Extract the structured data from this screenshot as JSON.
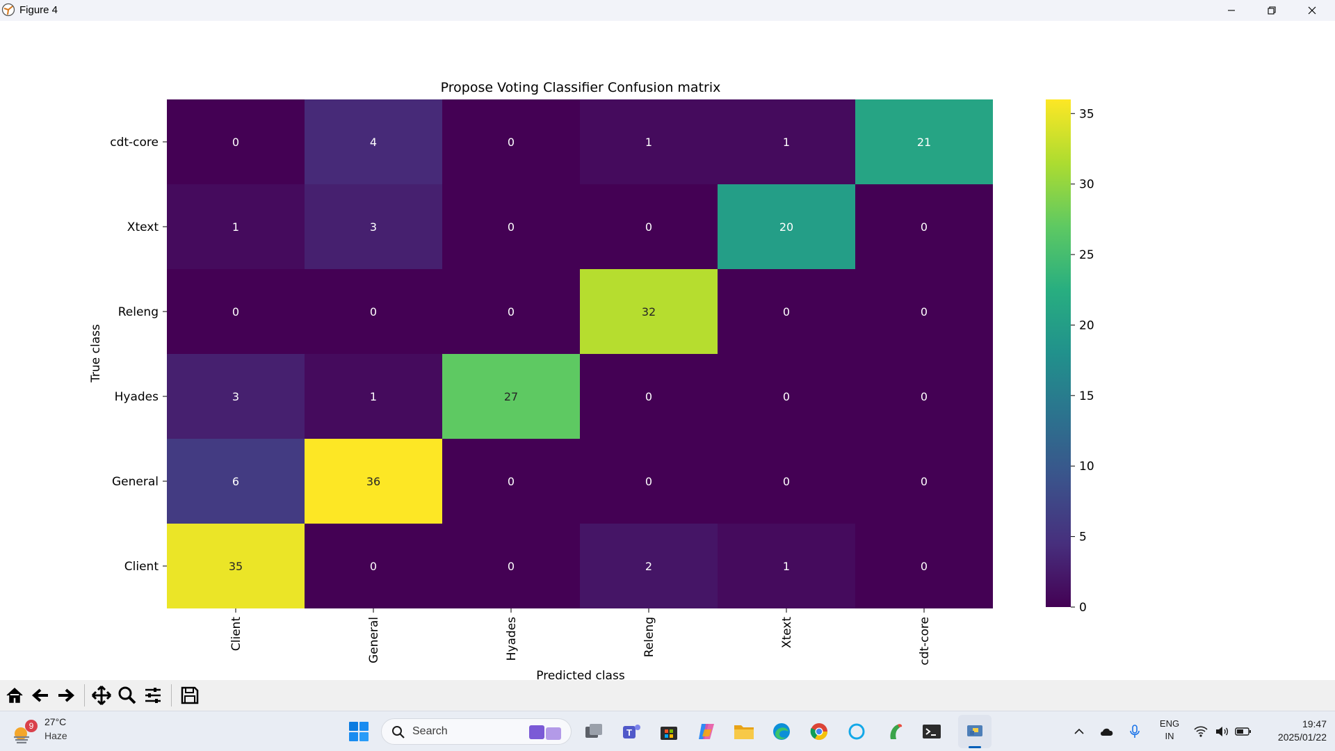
{
  "window": {
    "title": "Figure 4"
  },
  "chart_data": {
    "type": "heatmap",
    "title": "Propose Voting Classifier Confusion matrix",
    "xlabel": "Predicted class",
    "ylabel": "True class",
    "x_categories": [
      "Client",
      "General",
      "Hyades",
      "Releng",
      "Xtext",
      "cdt-core"
    ],
    "y_categories": [
      "cdt-core",
      "Xtext",
      "Releng",
      "Hyades",
      "General",
      "Client"
    ],
    "matrix": [
      [
        0,
        4,
        0,
        1,
        1,
        21
      ],
      [
        1,
        3,
        0,
        0,
        20,
        0
      ],
      [
        0,
        0,
        0,
        32,
        0,
        0
      ],
      [
        3,
        1,
        27,
        0,
        0,
        0
      ],
      [
        6,
        36,
        0,
        0,
        0,
        0
      ],
      [
        35,
        0,
        0,
        2,
        1,
        0
      ]
    ],
    "colormap": "viridis",
    "vmin": 0,
    "vmax": 36,
    "colorbar_ticks": [
      "0",
      "5",
      "10",
      "15",
      "20",
      "25",
      "30",
      "35"
    ]
  },
  "toolbar": {
    "items": [
      "home-icon",
      "back-icon",
      "forward-icon",
      "pan-icon",
      "zoom-icon",
      "configure-icon",
      "save-icon"
    ]
  },
  "taskbar": {
    "weather_badge": "9",
    "temperature": "27°C",
    "condition": "Haze",
    "search_label": "Search",
    "lang_line1": "ENG",
    "lang_line2": "IN",
    "time": "19:47",
    "date": "2025/01/22"
  }
}
